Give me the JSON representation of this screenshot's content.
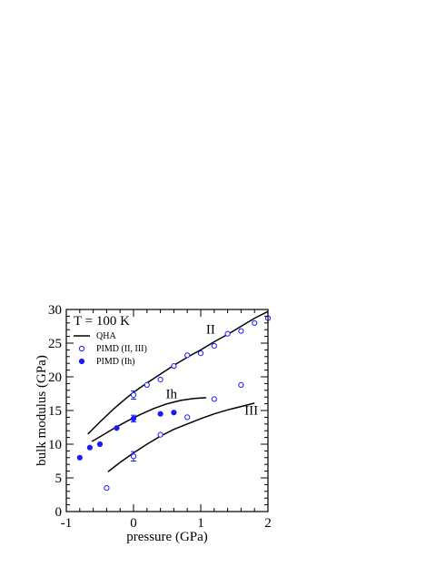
{
  "chart_data": {
    "type": "scatter",
    "title": "",
    "xlabel": "pressure (GPa)",
    "ylabel": "bulk modulus (GPa)",
    "xlim": [
      -1,
      2
    ],
    "ylim": [
      0,
      30
    ],
    "xticks": [
      -1,
      0,
      1,
      2
    ],
    "xtick_labels": [
      "-1",
      "0",
      "1",
      "2"
    ],
    "yticks": [
      0,
      5,
      10,
      15,
      20,
      25,
      30
    ],
    "ytick_labels": [
      "0",
      "5",
      "10",
      "15",
      "20",
      "25",
      "30"
    ],
    "grid": false,
    "legend_title": "T = 100 K",
    "legend_position": "top-left",
    "legend": [
      {
        "label": "QHA",
        "marker": "line"
      },
      {
        "label": "PIMD (II, III)",
        "marker": "open-circle"
      },
      {
        "label": "PIMD (Ih)",
        "marker": "filled-circle"
      }
    ],
    "annotations": [
      {
        "text": "II",
        "x": 1.08,
        "y": 26.4
      },
      {
        "text": "Ih",
        "x": 0.48,
        "y": 16.8
      },
      {
        "text": "III",
        "x": 1.65,
        "y": 14.4
      }
    ],
    "colors": {
      "pimd": "#1a1aff",
      "qha": "#000000"
    },
    "series": [
      {
        "name": "QHA",
        "kind": "line",
        "curves": [
          {
            "label": "II",
            "x": [
              -0.68,
              -0.5,
              -0.3,
              -0.1,
              0.0,
              0.2,
              0.4,
              0.6,
              0.8,
              1.0,
              1.2,
              1.4,
              1.6,
              1.8,
              2.0
            ],
            "y": [
              11.5,
              13.3,
              15.2,
              16.9,
              17.7,
              19.1,
              20.4,
              21.7,
              22.9,
              24.0,
              25.2,
              26.3,
              27.5,
              28.7,
              29.7
            ]
          },
          {
            "label": "Ih",
            "x": [
              -0.62,
              -0.5,
              -0.3,
              -0.1,
              0.1,
              0.3,
              0.5,
              0.7,
              0.9,
              1.08
            ],
            "y": [
              10.4,
              11.1,
              12.3,
              13.4,
              14.4,
              15.3,
              16.0,
              16.5,
              16.8,
              16.9
            ]
          },
          {
            "label": "III",
            "x": [
              -0.38,
              -0.2,
              0.0,
              0.2,
              0.4,
              0.6,
              0.8,
              1.0,
              1.2,
              1.4,
              1.6,
              1.8
            ],
            "y": [
              5.9,
              7.3,
              8.7,
              10.0,
              11.2,
              12.2,
              13.0,
              13.8,
              14.5,
              15.1,
              15.6,
              16.1
            ]
          }
        ]
      },
      {
        "name": "PIMD (II, III)",
        "kind": "open-circle",
        "x": [
          -0.4,
          0.0,
          0.0,
          0.2,
          0.4,
          0.4,
          0.6,
          0.8,
          0.8,
          1.0,
          1.2,
          1.2,
          1.4,
          1.6,
          1.6,
          1.8,
          2.0
        ],
        "y": [
          3.5,
          8.2,
          17.3,
          18.8,
          11.4,
          19.6,
          21.6,
          14.0,
          23.2,
          23.5,
          16.7,
          24.6,
          26.4,
          18.8,
          26.8,
          28.0,
          28.7
        ],
        "err": [
          0,
          0.7,
          0.6,
          0,
          0,
          0,
          0,
          0,
          0,
          0,
          0,
          0,
          0,
          0,
          0,
          0,
          0
        ]
      },
      {
        "name": "PIMD (Ih)",
        "kind": "filled-circle",
        "x": [
          -0.8,
          -0.65,
          -0.5,
          -0.25,
          0.0,
          0.4,
          0.6
        ],
        "y": [
          8.0,
          9.5,
          10.0,
          12.4,
          13.8,
          14.5,
          14.7
        ],
        "err": [
          0,
          0,
          0,
          0,
          0.5,
          0,
          0
        ]
      }
    ]
  }
}
